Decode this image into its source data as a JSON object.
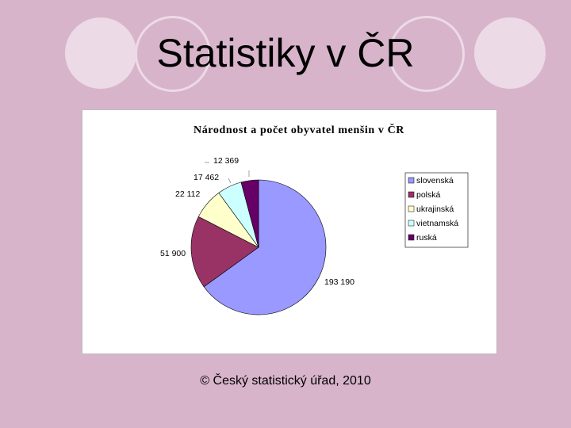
{
  "slide": {
    "title": "Statistiky v ČR",
    "footer": "© Český statistický úřad, 2010"
  },
  "colors": {
    "background": "#d8b4cb",
    "decor_circle": "#ecdbe6"
  },
  "chart_data": {
    "type": "pie",
    "title": "Národnost a počet obyvatel menšin v ČR",
    "legend_position": "right",
    "slices": [
      {
        "label": "slovenská",
        "value": 193190,
        "value_label": "193 190",
        "color": "#9999ff"
      },
      {
        "label": "polská",
        "value": 51900,
        "value_label": "51 900",
        "color": "#993366"
      },
      {
        "label": "ukrajinská",
        "value": 22112,
        "value_label": "22 112",
        "color": "#ffffcc"
      },
      {
        "label": "vietnamská",
        "value": 17462,
        "value_label": "17 462",
        "color": "#ccffff"
      },
      {
        "label": "ruská",
        "value": 12369,
        "value_label": "12 369",
        "color": "#660066"
      }
    ]
  }
}
